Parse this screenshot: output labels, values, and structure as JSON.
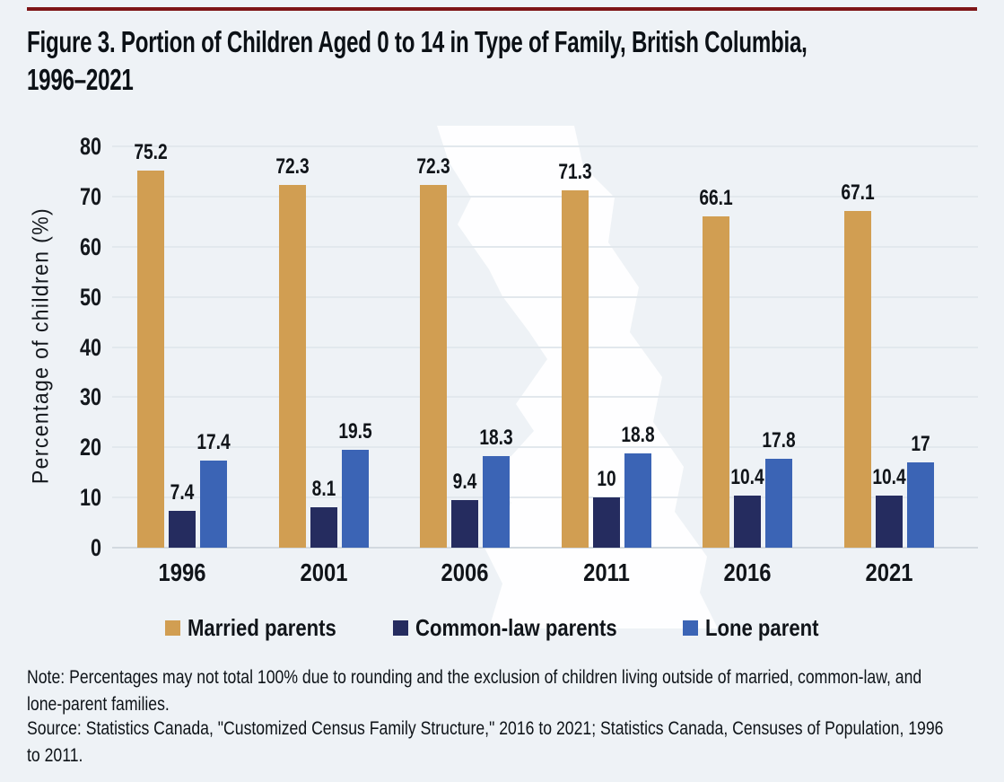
{
  "accent_color": "#7E1517",
  "background_color": "#EEF2F6",
  "title": {
    "line1": "Figure 3. Portion of Children Aged 0 to 14 in Type of Family, British Columbia,",
    "line2": "1996–2021"
  },
  "chart_data": {
    "type": "bar",
    "title": "Figure 3. Portion of Children Aged 0 to 14 in Type of Family, British Columbia, 1996–2021",
    "categories": [
      "1996",
      "2001",
      "2006",
      "2011",
      "2016",
      "2021"
    ],
    "series": [
      {
        "name": "Married parents",
        "color": "#D19E52",
        "values": [
          75.2,
          72.3,
          72.3,
          71.3,
          66.1,
          67.1
        ]
      },
      {
        "name": "Common-law parents",
        "color": "#252C5F",
        "values": [
          7.4,
          8.1,
          9.4,
          10,
          10.4,
          10.4
        ]
      },
      {
        "name": "Lone parent",
        "color": "#3B64B5",
        "values": [
          17.4,
          19.5,
          18.3,
          18.8,
          17.8,
          17
        ]
      }
    ],
    "xlabel": "",
    "ylabel": "Percentage of children (%)",
    "ylim": [
      0,
      80
    ],
    "yticks": [
      0,
      10,
      20,
      30,
      40,
      50,
      60,
      70,
      80
    ],
    "grid": true,
    "legend_position": "bottom"
  },
  "notes": {
    "note_line1": "Note: Percentages may not total 100% due to rounding and the exclusion of children living outside of married, common-law, and",
    "note_line2": "lone-parent families.",
    "source_line1": "Source: Statistics Canada, \"Customized Census Family Structure,\" 2016 to 2021; Statistics Canada, Censuses of Population, 1996",
    "source_line2": "to 2011."
  }
}
